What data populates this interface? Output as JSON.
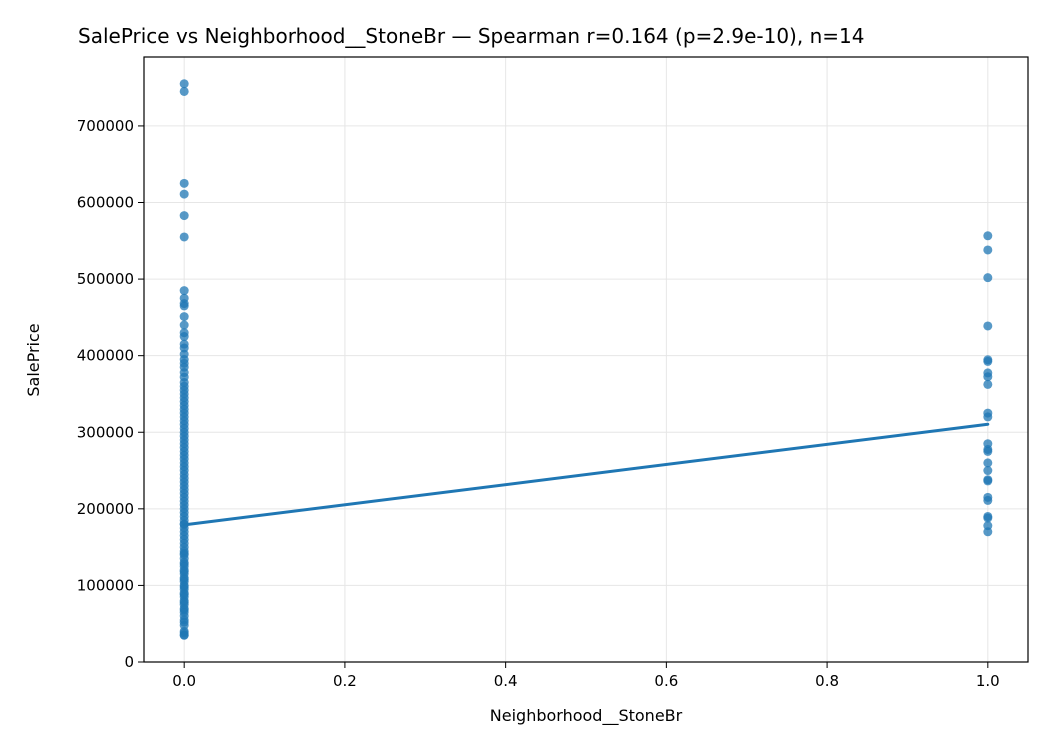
{
  "chart_data": {
    "type": "scatter",
    "title": "SalePrice vs Neighborhood__StoneBr — Spearman r=0.164 (p=2.9e-10), n=14",
    "xlabel": "Neighborhood__StoneBr",
    "ylabel": "SalePrice",
    "xlim": [
      -0.05,
      1.05
    ],
    "ylim": [
      0,
      790000
    ],
    "xticks": [
      0.0,
      0.2,
      0.4,
      0.6,
      0.8,
      1.0
    ],
    "xtick_labels": [
      "0.0",
      "0.2",
      "0.4",
      "0.6",
      "0.8",
      "1.0"
    ],
    "yticks": [
      0,
      100000,
      200000,
      300000,
      400000,
      500000,
      600000,
      700000
    ],
    "ytick_labels": [
      "0",
      "100000",
      "200000",
      "300000",
      "400000",
      "500000",
      "600000",
      "700000"
    ],
    "grid": true,
    "point_color": "#1f77b4",
    "line_color": "#1f77b4",
    "series": [
      {
        "x": [
          0,
          0,
          0,
          0,
          0,
          0,
          0,
          0,
          0,
          0,
          0,
          0,
          0,
          0,
          0,
          0,
          0,
          0,
          0,
          0,
          0,
          0,
          0,
          0,
          0,
          0,
          0,
          0,
          0,
          0,
          0,
          0,
          0,
          0,
          0,
          0,
          0,
          0,
          0,
          0,
          0,
          0,
          0,
          0,
          0,
          0,
          0,
          0,
          0,
          0,
          0,
          0,
          0,
          0,
          0,
          0,
          0,
          0,
          0,
          0,
          0,
          0,
          0,
          0,
          0,
          0,
          0,
          0,
          0,
          0,
          0,
          0,
          0,
          0,
          0,
          0,
          0,
          0,
          0,
          0,
          0,
          0,
          0,
          0,
          0,
          0,
          0,
          0,
          0,
          0,
          0,
          0,
          0,
          0,
          0,
          0,
          0,
          0,
          0,
          0
        ],
        "y": [
          755000,
          745000,
          625000,
          611000,
          582900,
          555000,
          485000,
          475000,
          468000,
          465000,
          451000,
          440000,
          430000,
          425000,
          415000,
          410000,
          402000,
          395000,
          390000,
          385000,
          378000,
          372000,
          365000,
          360000,
          355000,
          350000,
          345000,
          340000,
          335000,
          330000,
          325000,
          320000,
          315000,
          310000,
          305000,
          300000,
          295000,
          290000,
          285000,
          280000,
          275000,
          270000,
          265000,
          260000,
          255000,
          250000,
          245000,
          240000,
          235000,
          230000,
          225000,
          220000,
          215000,
          210000,
          205000,
          200000,
          195000,
          190000,
          185000,
          180000,
          175000,
          170000,
          165000,
          160000,
          155000,
          150000,
          145000,
          140000,
          135000,
          130000,
          125000,
          120000,
          115000,
          110000,
          105000,
          100000,
          95000,
          90000,
          85000,
          80000,
          75000,
          70000,
          65000,
          60000,
          55000,
          52000,
          48000,
          40000,
          37900,
          35311,
          34900,
          180000,
          142000,
          128000,
          118000,
          108000,
          98000,
          88000,
          78000,
          68000
        ]
      },
      {
        "x": [
          1,
          1,
          1,
          1,
          1,
          1,
          1,
          1,
          1,
          1,
          1,
          1,
          1,
          1,
          1,
          1,
          1,
          1,
          1,
          1,
          1,
          1,
          1
        ],
        "y": [
          556581,
          538000,
          501837,
          438780,
          394617,
          392500,
          377500,
          372500,
          362500,
          325000,
          320000,
          285000,
          277500,
          275000,
          260000,
          250000,
          238000,
          236500,
          215000,
          211000,
          190000,
          188000,
          178000
        ]
      },
      {
        "x": [
          1
        ],
        "y": [
          170000
        ]
      }
    ],
    "trendline": {
      "x": [
        0,
        1
      ],
      "y": [
        179000,
        310500
      ]
    }
  }
}
